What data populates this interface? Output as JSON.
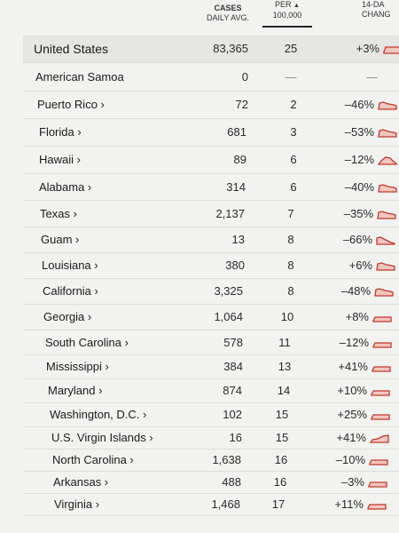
{
  "header": {
    "cases_line1": "CASES",
    "cases_line2": "DAILY AVG.",
    "per_line1": "PER",
    "per_line2": "100,000",
    "per_sort_icon": "sort-up-triangle-icon",
    "change_line1": "14-DA",
    "change_line2": "CHANG"
  },
  "accent_color": "#c0392b",
  "rows": [
    {
      "name": "United States",
      "cases": "83,365",
      "per": "25",
      "change": "+3%",
      "trend": "flat-high"
    },
    {
      "name": "American Samoa",
      "cases": "0",
      "per": "—",
      "change": "—",
      "trend": "none"
    },
    {
      "name": "Puerto Rico ›",
      "cases": "72",
      "per": "2",
      "change": "–46%",
      "trend": "down"
    },
    {
      "name": "Florida ›",
      "cases": "681",
      "per": "3",
      "change": "–53%",
      "trend": "down"
    },
    {
      "name": "Hawaii ›",
      "cases": "89",
      "per": "6",
      "change": "–12%",
      "trend": "hump"
    },
    {
      "name": "Alabama ›",
      "cases": "314",
      "per": "6",
      "change": "–40%",
      "trend": "down"
    },
    {
      "name": "Texas ›",
      "cases": "2,137",
      "per": "7",
      "change": "–35%",
      "trend": "down"
    },
    {
      "name": "Guam ›",
      "cases": "13",
      "per": "8",
      "change": "–66%",
      "trend": "down-steep"
    },
    {
      "name": "Louisiana ›",
      "cases": "380",
      "per": "8",
      "change": "+6%",
      "trend": "down"
    },
    {
      "name": "California ›",
      "cases": "3,325",
      "per": "8",
      "change": "–48%",
      "trend": "down"
    },
    {
      "name": "Georgia ›",
      "cases": "1,064",
      "per": "10",
      "change": "+8%",
      "trend": "flat"
    },
    {
      "name": "South Carolina ›",
      "cases": "578",
      "per": "11",
      "change": "–12%",
      "trend": "flat"
    },
    {
      "name": "Mississippi ›",
      "cases": "384",
      "per": "13",
      "change": "+41%",
      "trend": "flat"
    },
    {
      "name": "Maryland ›",
      "cases": "874",
      "per": "14",
      "change": "+10%",
      "trend": "flat"
    },
    {
      "name": "Washington, D.C. ›",
      "cases": "102",
      "per": "15",
      "change": "+25%",
      "trend": "flat"
    },
    {
      "name": "U.S. Virgin Islands ›",
      "cases": "16",
      "per": "15",
      "change": "+41%",
      "trend": "up"
    },
    {
      "name": "North Carolina ›",
      "cases": "1,638",
      "per": "16",
      "change": "–10%",
      "trend": "flat"
    },
    {
      "name": "Arkansas ›",
      "cases": "488",
      "per": "16",
      "change": "–3%",
      "trend": "flat"
    },
    {
      "name": "Virginia ›",
      "cases": "1,468",
      "per": "17",
      "change": "+11%",
      "trend": "flat"
    }
  ]
}
